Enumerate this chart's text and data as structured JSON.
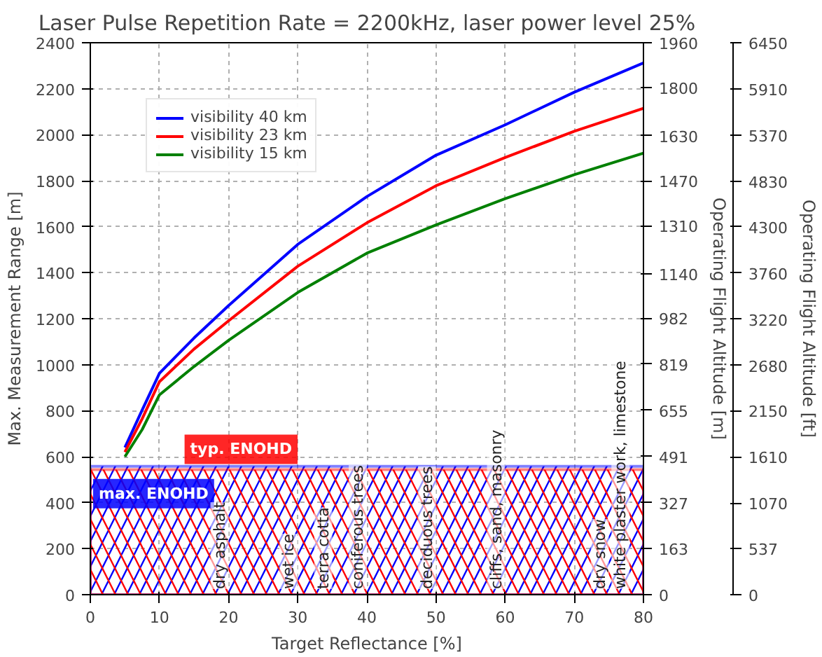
{
  "chart_data": {
    "type": "line",
    "title": "Laser Pulse Repetition Rate = 2200kHz, laser power level 25%",
    "xlabel": "Target Reflectance [%]",
    "ylabel": "Max. Measurement Range [m]",
    "y2label": "Operating Flight Altitude [m]",
    "y3label": "Operating Flight Altitude [ft]",
    "x": [
      5,
      7.5,
      10,
      15,
      20,
      30,
      40,
      50,
      60,
      70,
      80
    ],
    "series": [
      {
        "name": "visibility 40 km",
        "color": "#0000ff",
        "values": [
          640,
          803,
          963,
          1116,
          1257,
          1523,
          1731,
          1911,
          2043,
          2185,
          2312
        ]
      },
      {
        "name": "visibility 23 km",
        "color": "#ff0000",
        "values": [
          620,
          765,
          926,
          1068,
          1191,
          1428,
          1617,
          1778,
          1901,
          2015,
          2115
        ]
      },
      {
        "name": "visibility 15 km",
        "color": "#008000",
        "values": [
          600,
          718,
          869,
          992,
          1106,
          1314,
          1485,
          1608,
          1722,
          1826,
          1920
        ]
      }
    ],
    "xlim": [
      0,
      80
    ],
    "xticks": [
      0,
      10,
      20,
      30,
      40,
      50,
      60,
      70,
      80
    ],
    "ylim": [
      0,
      2400
    ],
    "yticks": [
      0,
      200,
      400,
      600,
      800,
      1000,
      1200,
      1400,
      1600,
      1800,
      2000,
      2200,
      2400
    ],
    "y2lim": [
      0,
      1960
    ],
    "y2ticks": [
      0,
      163,
      327,
      491,
      655,
      819,
      982,
      1140,
      1310,
      1470,
      1630,
      1800,
      1960
    ],
    "y3lim": [
      0,
      6450
    ],
    "y3ticks": [
      0,
      537,
      1070,
      1610,
      2150,
      2680,
      3220,
      3760,
      4300,
      4830,
      5370,
      5910,
      6450
    ],
    "bands": [
      {
        "axis": "y",
        "from": 0,
        "to": 558,
        "label": "max. ENOHD",
        "color": "#0000ff"
      },
      {
        "axis": "y",
        "from": 0,
        "to": 544,
        "label": "typ. ENOHD",
        "color": "#ff0000"
      }
    ],
    "annotations": [
      {
        "text": "dry asphalt",
        "x": 20,
        "y": 0
      },
      {
        "text": "wet ice",
        "x": 30,
        "y": 0
      },
      {
        "text": "terra cotta",
        "x": 35,
        "y": 0
      },
      {
        "text": "coniferous trees",
        "x": 40,
        "y": 0
      },
      {
        "text": "deciduous trees",
        "x": 50,
        "y": 0
      },
      {
        "text": "cliffs, sand, masonry",
        "x": 60,
        "y": 0
      },
      {
        "text": "dry snow",
        "x": 75,
        "y": 0
      },
      {
        "text": "white plaster work, limestone",
        "x": 78,
        "y": 0
      }
    ],
    "grid": true,
    "legend": "top left",
    "line_style": "solid"
  }
}
